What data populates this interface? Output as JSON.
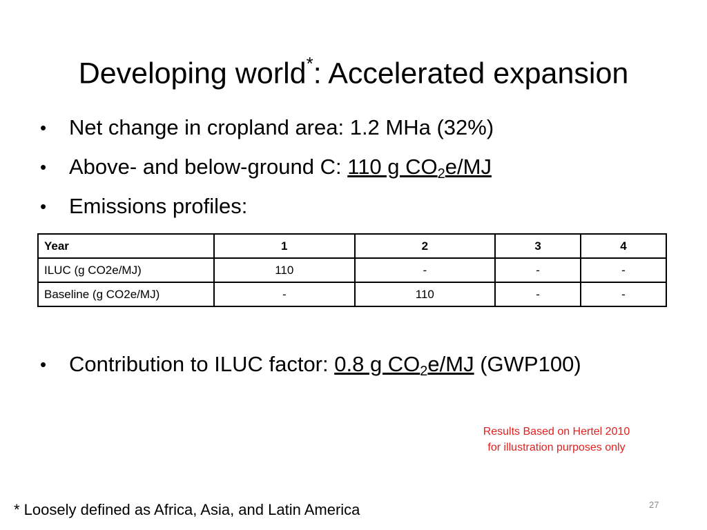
{
  "slide": {
    "title_main": "Developing world",
    "title_sup": "*",
    "title_rest": ": Accelerated expansion",
    "bullet_glyph": "•",
    "bullets": [
      {
        "text": "Net change in cropland area: 1.2 MHa (32%)"
      },
      {
        "prefix": "Above- and below-ground C: ",
        "value_a": "110 g CO",
        "sub": "2",
        "value_b": "e/MJ"
      },
      {
        "text": "Emissions profiles:"
      }
    ],
    "contribution": {
      "prefix": "Contribution to ILUC factor: ",
      "value_a": "0.8 g CO",
      "sub": "2",
      "value_b": "e/MJ",
      "suffix": " (GWP100)"
    },
    "note_line1": "Results Based on Hertel 2010",
    "note_line2": "for illustration purposes only",
    "footnote": "* Loosely defined as Africa, Asia, and Latin America",
    "page_number": "27"
  },
  "table": {
    "headers": [
      "Year",
      "1",
      "2",
      "3",
      "4"
    ],
    "rows": [
      [
        "ILUC (g CO2e/MJ)",
        "110",
        "-",
        "-",
        "-"
      ],
      [
        "Baseline (g CO2e/MJ)",
        "-",
        "110",
        "-",
        "-"
      ]
    ]
  },
  "colors": {
    "note": "#e0201e",
    "page_number": "#8a8a8a",
    "text": "#000000"
  }
}
